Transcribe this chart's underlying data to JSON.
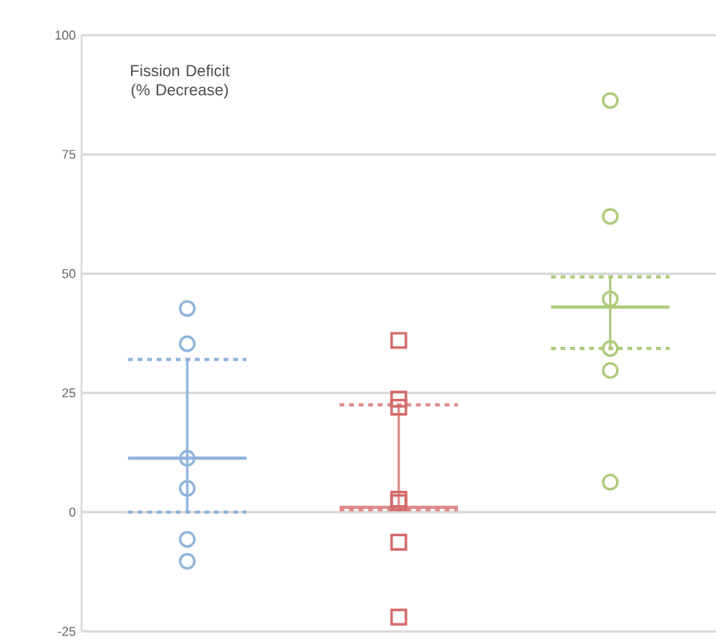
{
  "chart_data": {
    "type": "box",
    "title": "Fission Deficit (% Decrease)",
    "categories": [
      null,
      null,
      null
    ],
    "ylim": [
      -25,
      100
    ],
    "yticks": [
      -25,
      0,
      25,
      50,
      75,
      100
    ],
    "tick_labels": "y",
    "grid": "y",
    "colors": [
      "#8fb3dc",
      "#dd8a8a",
      "#aecb7a"
    ],
    "boxes": [
      {
        "low": 0,
        "q1": 0,
        "median": 11.3,
        "q3": 32,
        "high": 32
      },
      {
        "low": 0.5,
        "q1": 0.5,
        "median": 1,
        "q3": 22.5,
        "high": 22.5
      },
      {
        "low": 34.3,
        "q1": 34.3,
        "median": 43,
        "q3": 49.3,
        "high": 49.3
      }
    ],
    "series": [
      {
        "type": "scatter",
        "colors": [
          "#8fb3dc",
          "#dd8a8a",
          "#aecb7a"
        ],
        "marker": "circle",
        "values": [
          42.7,
          null,
          86.3
        ]
      },
      {
        "type": "scatter",
        "colors": [
          "#8fb3dc",
          "#dd8a8a",
          "#aecb7a"
        ],
        "marker": "circle",
        "values": [
          35.3,
          null,
          62
        ]
      },
      {
        "type": "scatter",
        "colors": [
          "#8fb3dc",
          "#dd8a8a",
          "#aecb7a"
        ],
        "marker": "circle",
        "values": [
          11.3,
          null,
          44.7
        ]
      },
      {
        "type": "scatter",
        "colors": [
          "#8fb3dc",
          "#dd8a8a",
          "#aecb7a"
        ],
        "marker": "circle",
        "values": [
          5,
          null,
          34.3
        ]
      },
      {
        "type": "scatter",
        "colors": [
          "#8fb3dc",
          "#dd8a8a",
          "#aecb7a"
        ],
        "marker": "circle",
        "values": [
          -5.7,
          null,
          29.7
        ]
      },
      {
        "type": "scatter",
        "colors": [
          "#8fb3dc",
          "#dd8a8a",
          "#aecb7a"
        ],
        "marker": "circle",
        "values": [
          -10.3,
          null,
          6.3
        ]
      },
      {
        "type": "scatter",
        "color": "#d46a6a",
        "marker": "square",
        "values": [
          null,
          36,
          null
        ]
      },
      {
        "type": "scatter",
        "color": "#d46a6a",
        "marker": "square",
        "values": [
          null,
          23.7,
          null
        ]
      },
      {
        "type": "scatter",
        "color": "#d46a6a",
        "marker": "square",
        "values": [
          null,
          22,
          null
        ]
      },
      {
        "type": "scatter",
        "color": "#d46a6a",
        "marker": "square",
        "values": [
          null,
          2.7,
          null
        ]
      },
      {
        "type": "scatter",
        "color": "#d46a6a",
        "marker": "square",
        "values": [
          null,
          2,
          null
        ]
      },
      {
        "type": "scatter",
        "color": "#d46a6a",
        "marker": "square",
        "values": [
          null,
          -6.3,
          null
        ]
      },
      {
        "type": "scatter",
        "color": "#d46a6a",
        "marker": "square",
        "values": [
          null,
          -22,
          null
        ]
      }
    ]
  }
}
